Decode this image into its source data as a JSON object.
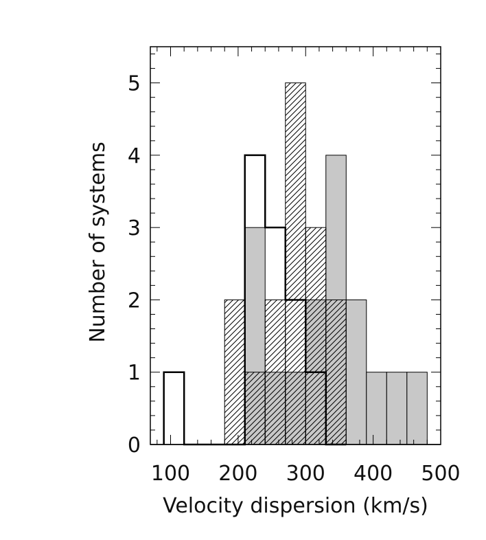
{
  "chart_data": {
    "type": "bar",
    "xlabel": "Velocity dispersion (km/s)",
    "ylabel": "Number of systems",
    "xlim": [
      70,
      500
    ],
    "ylim": [
      0,
      5.5
    ],
    "x_ticks": [
      100,
      200,
      300,
      400,
      500
    ],
    "y_ticks": [
      0,
      1,
      2,
      3,
      4,
      5
    ],
    "bin_width": 30,
    "series": [
      {
        "style": "filled-gray",
        "fill": "#c8c8c8",
        "bins": [
          {
            "x0": 210,
            "x1": 240,
            "value": 3
          },
          {
            "x0": 240,
            "x1": 270,
            "value": 1
          },
          {
            "x0": 270,
            "x1": 300,
            "value": 1
          },
          {
            "x0": 300,
            "x1": 330,
            "value": 2
          },
          {
            "x0": 330,
            "x1": 360,
            "value": 4
          },
          {
            "x0": 360,
            "x1": 390,
            "value": 2
          },
          {
            "x0": 390,
            "x1": 420,
            "value": 1
          },
          {
            "x0": 420,
            "x1": 450,
            "value": 1
          },
          {
            "x0": 450,
            "x1": 480,
            "value": 1
          }
        ]
      },
      {
        "style": "hatched",
        "bins": [
          {
            "x0": 180,
            "x1": 210,
            "value": 2
          },
          {
            "x0": 210,
            "x1": 240,
            "value": 1
          },
          {
            "x0": 240,
            "x1": 270,
            "value": 2
          },
          {
            "x0": 270,
            "x1": 300,
            "value": 5
          },
          {
            "x0": 300,
            "x1": 330,
            "value": 3
          },
          {
            "x0": 330,
            "x1": 360,
            "value": 2
          }
        ]
      },
      {
        "style": "outline-thick",
        "bins": [
          {
            "x0": 90,
            "x1": 120,
            "value": 1
          },
          {
            "x0": 120,
            "x1": 150,
            "value": 0
          },
          {
            "x0": 150,
            "x1": 180,
            "value": 0
          },
          {
            "x0": 180,
            "x1": 210,
            "value": 0
          },
          {
            "x0": 210,
            "x1": 240,
            "value": 4
          },
          {
            "x0": 240,
            "x1": 270,
            "value": 3
          },
          {
            "x0": 270,
            "x1": 300,
            "value": 2
          },
          {
            "x0": 300,
            "x1": 330,
            "value": 1
          },
          {
            "x0": 330,
            "x1": 360,
            "value": 0
          }
        ]
      }
    ]
  }
}
